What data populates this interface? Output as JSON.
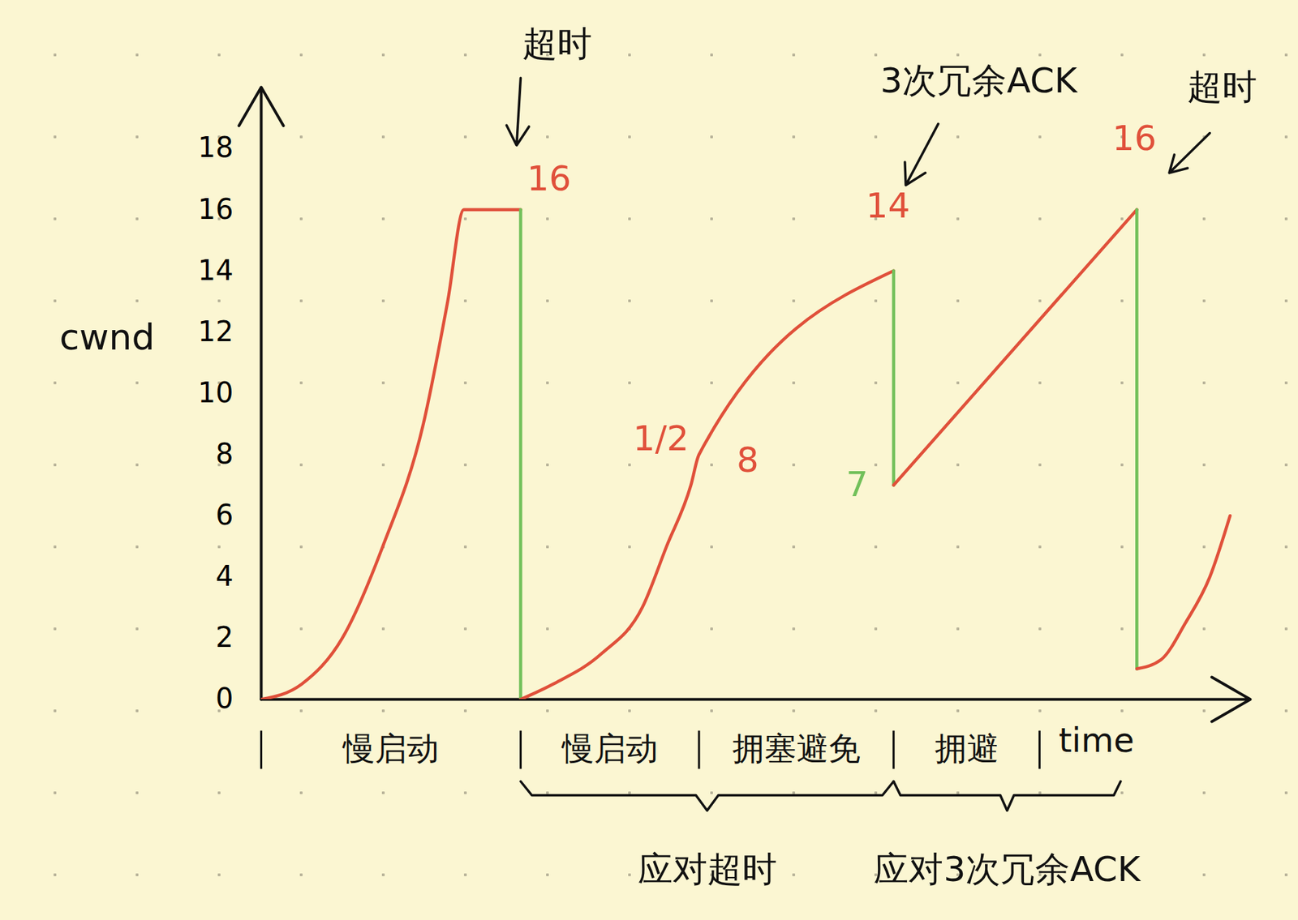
{
  "chart_data": {
    "type": "line",
    "ylabel": "cwnd",
    "xlabel": "time",
    "xlim": [
      0,
      122
    ],
    "ylim": [
      0,
      20
    ],
    "yticks": [
      0,
      2,
      4,
      6,
      8,
      10,
      12,
      14,
      16,
      18
    ],
    "tick_labels": "y",
    "grid": false,
    "series": [
      {
        "color": "#e0503a",
        "x": [
          0,
          5,
          10,
          15,
          20,
          23,
          25,
          32
        ],
        "values": [
          0,
          0.5,
          2,
          5,
          9,
          13,
          16,
          16
        ]
      },
      {
        "color": "#72c05a",
        "x": [
          32,
          32
        ],
        "values": [
          16,
          0
        ]
      },
      {
        "color": "#e0503a",
        "x": [
          32,
          36,
          42,
          47,
          50,
          53,
          54,
          78
        ],
        "values": [
          0,
          0.5,
          1.5,
          3,
          5,
          7,
          8,
          14
        ]
      },
      {
        "color": "#72c05a",
        "x": [
          78,
          78
        ],
        "values": [
          14,
          7
        ]
      },
      {
        "color": "#e0503a",
        "x": [
          78,
          108
        ],
        "values": [
          7,
          16
        ]
      },
      {
        "color": "#72c05a",
        "x": [
          108,
          108
        ],
        "values": [
          16,
          1
        ]
      },
      {
        "color": "#e0503a",
        "x": [
          108,
          111,
          114,
          117,
          119.5
        ],
        "values": [
          1,
          1.3,
          2.5,
          4,
          6
        ]
      }
    ],
    "annotations": [
      {
        "text": "超时",
        "x": 36.5,
        "y": 21.4,
        "color": "#111111",
        "arrow": [
          32,
          20.3,
          31.5,
          18.1
        ]
      },
      {
        "text": "16",
        "x": 35.5,
        "y": 17.0,
        "color": "#e0503a"
      },
      {
        "text": "1/2",
        "x": 49.3,
        "y": 8.5,
        "color": "#e0503a"
      },
      {
        "text": "8",
        "x": 60,
        "y": 7.8,
        "color": "#e0503a"
      },
      {
        "text": "14",
        "x": 77.3,
        "y": 16.1,
        "color": "#e0503a"
      },
      {
        "text": "7",
        "x": 73.5,
        "y": 7,
        "color": "#72c05a"
      },
      {
        "text": "3次冗余ACK",
        "x": 88.5,
        "y": 20.2,
        "color": "#111111",
        "arrow": [
          83.5,
          18.8,
          79.5,
          16.8
        ]
      },
      {
        "text": "16",
        "x": 107.7,
        "y": 18.3,
        "color": "#e0503a"
      },
      {
        "text": "超时",
        "x": 118.5,
        "y": 20,
        "color": "#111111",
        "arrow": [
          117,
          18.5,
          112,
          17.2
        ]
      }
    ],
    "phases": [
      {
        "label": "慢启动",
        "start": 0,
        "end": 32
      },
      {
        "label": "慢启动",
        "start": 32,
        "end": 54
      },
      {
        "label": "拥塞避免",
        "start": 54,
        "end": 78
      },
      {
        "label": "拥避",
        "start": 78,
        "end": 96
      }
    ],
    "groups": [
      {
        "label": "应对超时",
        "start": 32,
        "end": 78
      },
      {
        "label": "应对3次冗余ACK",
        "start": 78,
        "end": 106
      }
    ]
  }
}
